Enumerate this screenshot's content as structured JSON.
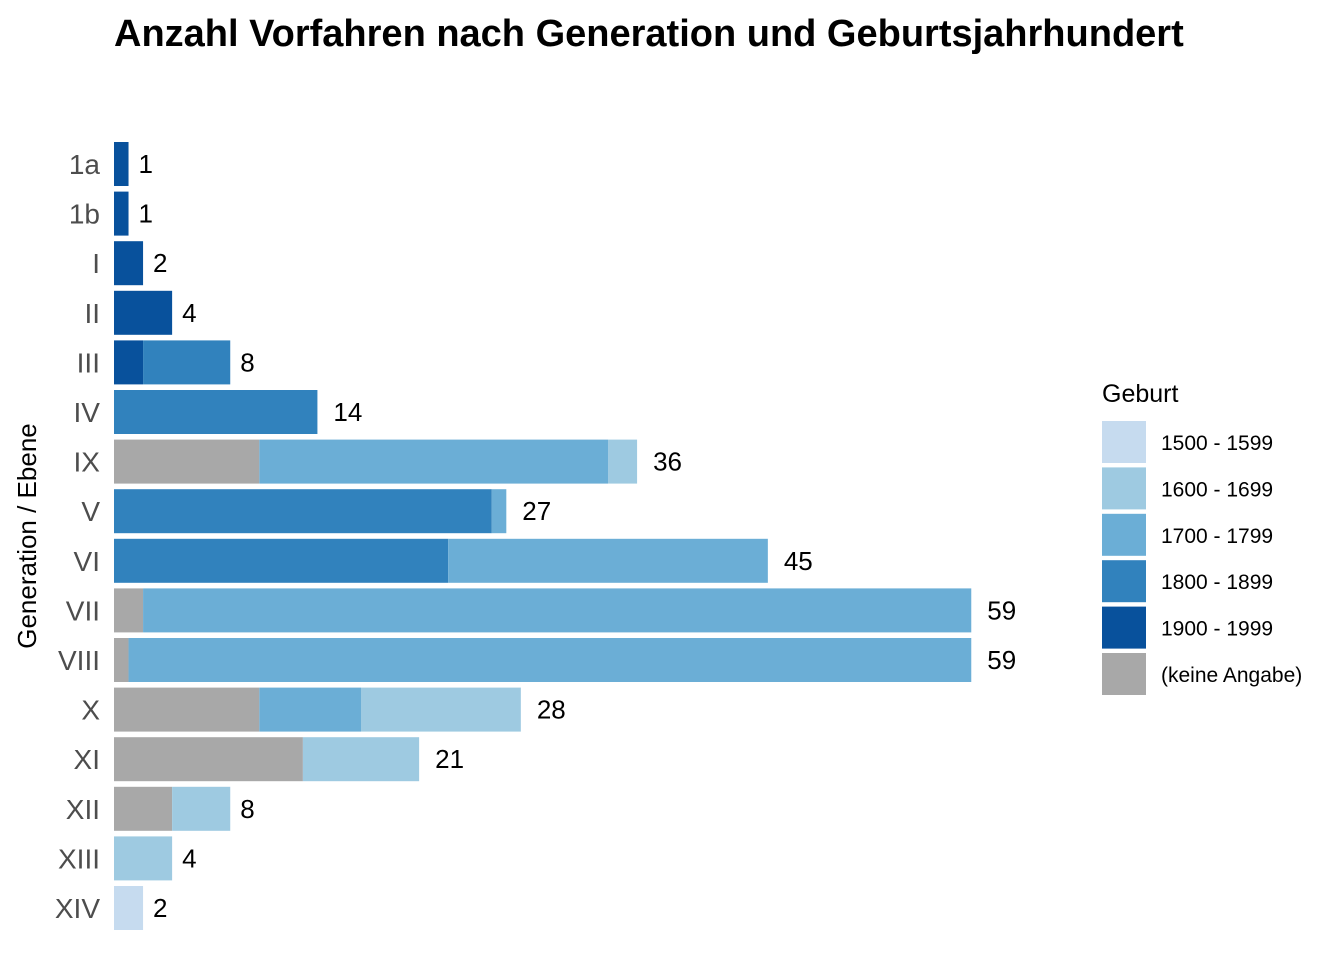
{
  "chart_data": {
    "type": "bar",
    "orientation": "horizontal",
    "stacked": true,
    "title": "Anzahl Vorfahren nach Generation und Geburtsjahrhundert",
    "ylabel": "Generation / Ebene",
    "xlabel": "",
    "categories": [
      "1a",
      "1b",
      "I",
      "II",
      "III",
      "IV",
      "IX",
      "V",
      "VI",
      "VII",
      "VIII",
      "X",
      "XI",
      "XII",
      "XIII",
      "XIV"
    ],
    "totals": [
      1,
      1,
      2,
      4,
      8,
      14,
      36,
      27,
      45,
      59,
      59,
      28,
      21,
      8,
      4,
      2
    ],
    "series": [
      {
        "name": "(keine Angabe)",
        "color": "#a8a8a8",
        "values": [
          0,
          0,
          0,
          0,
          0,
          0,
          10,
          0,
          0,
          2,
          1,
          10,
          13,
          4,
          0,
          0
        ]
      },
      {
        "name": "1900 - 1999",
        "color": "#08519c",
        "values": [
          1,
          1,
          2,
          4,
          2,
          0,
          0,
          0,
          0,
          0,
          0,
          0,
          0,
          0,
          0,
          0
        ]
      },
      {
        "name": "1800 - 1899",
        "color": "#3182bd",
        "values": [
          0,
          0,
          0,
          0,
          6,
          14,
          0,
          26,
          23,
          0,
          0,
          0,
          0,
          0,
          0,
          0
        ]
      },
      {
        "name": "1700 - 1799",
        "color": "#6baed6",
        "values": [
          0,
          0,
          0,
          0,
          0,
          0,
          24,
          1,
          22,
          57,
          58,
          7,
          0,
          0,
          0,
          0
        ]
      },
      {
        "name": "1600 - 1699",
        "color": "#9ecae1",
        "values": [
          0,
          0,
          0,
          0,
          0,
          0,
          2,
          0,
          0,
          0,
          0,
          11,
          8,
          4,
          4,
          0
        ]
      },
      {
        "name": "1500 - 1599",
        "color": "#c6dbef",
        "values": [
          0,
          0,
          0,
          0,
          0,
          0,
          0,
          0,
          0,
          0,
          0,
          0,
          0,
          0,
          0,
          2
        ]
      }
    ],
    "xlim": [
      0,
      59
    ],
    "grid": false,
    "legend": {
      "title": "Geburt",
      "placement": "right",
      "entries": [
        "1500 - 1599",
        "1600 - 1699",
        "1700 - 1799",
        "1800 - 1899",
        "1900 - 1999",
        "(keine Angabe)"
      ]
    }
  }
}
